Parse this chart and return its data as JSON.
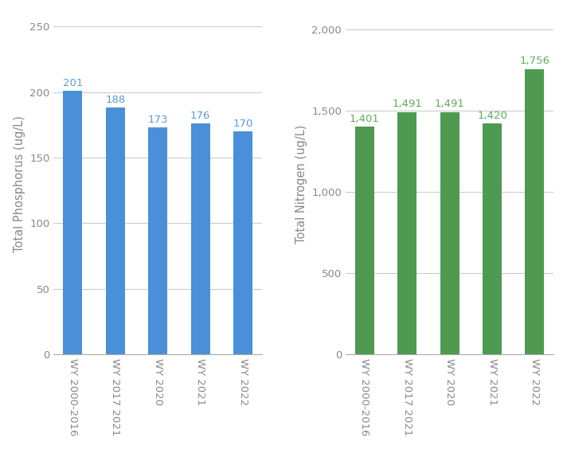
{
  "categories": [
    "WY 2000-2016",
    "WY 2017 2021",
    "WY 2020",
    "WY 2021",
    "WY 2022"
  ],
  "phosphorus_values": [
    201,
    188,
    173,
    176,
    170
  ],
  "nitrogen_values": [
    1401,
    1491,
    1491,
    1420,
    1756
  ],
  "phosphorus_color": "#4A90D9",
  "nitrogen_color": "#4E9A51",
  "phosphorus_label_color": "#5B9BD5",
  "nitrogen_label_color": "#5AAF5A",
  "phosphorus_ylabel": "Total Phosphorus (ug/L)",
  "nitrogen_ylabel": "Total Nitrogen (ug/L)",
  "phosphorus_ylim": [
    0,
    260
  ],
  "nitrogen_ylim": [
    0,
    2100
  ],
  "phosphorus_yticks": [
    0,
    50,
    100,
    150,
    200,
    250
  ],
  "nitrogen_yticks": [
    0,
    500,
    1000,
    1500,
    2000
  ],
  "background_color": "#ffffff",
  "grid_color": "#cccccc",
  "tick_label_color": "#888888",
  "axis_color": "#aaaaaa",
  "bar_width": 0.45,
  "label_fontsize": 9.5,
  "tick_fontsize": 9.5,
  "ylabel_fontsize": 10.5
}
